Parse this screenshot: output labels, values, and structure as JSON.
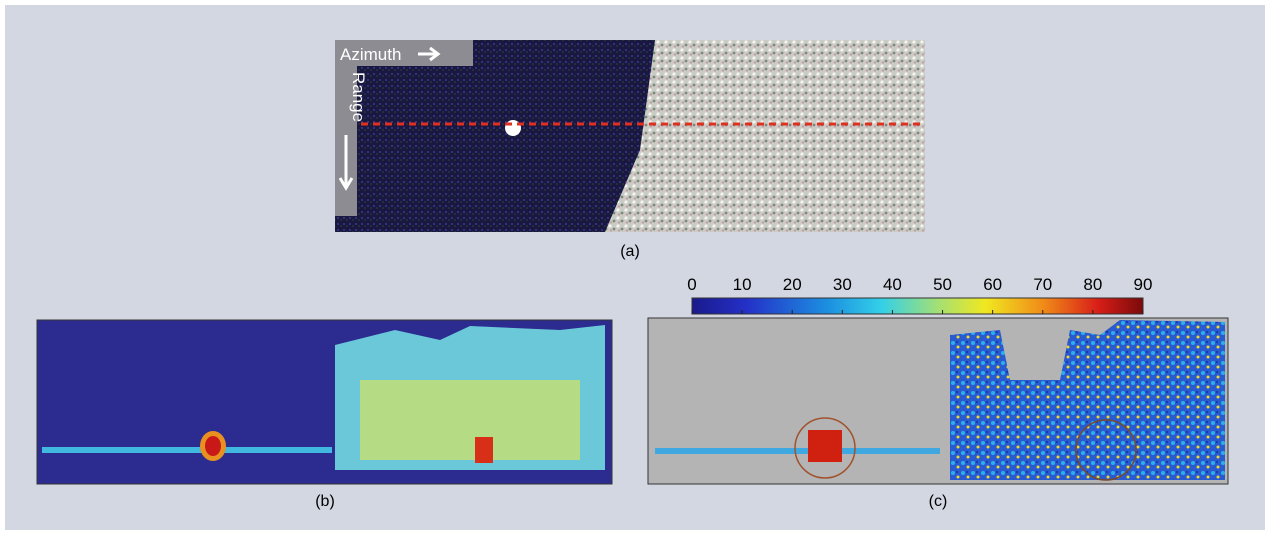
{
  "panel_a": {
    "azimuth_label": "Azimuth",
    "range_label": "Range",
    "caption": "(a)"
  },
  "panel_b": {
    "caption": "(b)"
  },
  "panel_c": {
    "caption": "(c)",
    "colorbar": {
      "lim": [
        0,
        90
      ],
      "ticks": [
        0,
        10,
        20,
        30,
        40,
        50,
        60,
        70,
        80,
        90
      ]
    }
  }
}
